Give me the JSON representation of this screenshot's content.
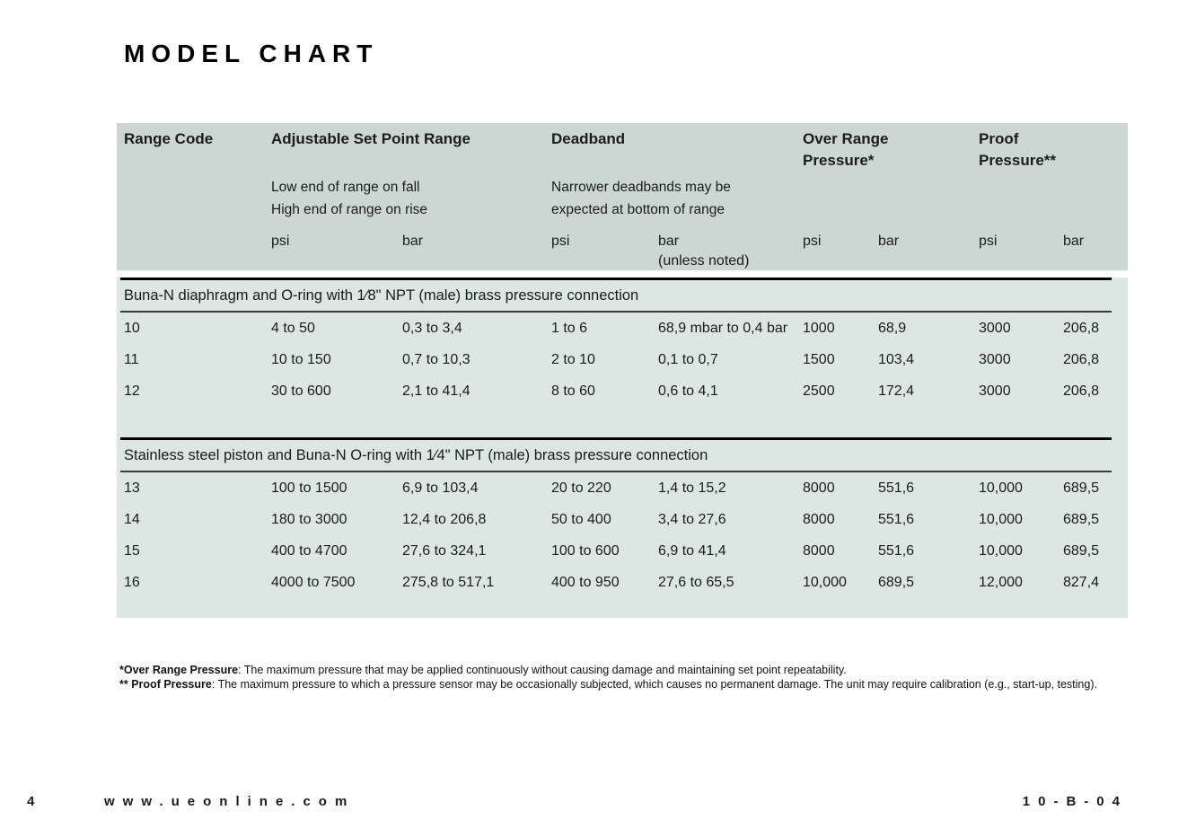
{
  "page": {
    "title": "MODEL CHART",
    "page_number": "4",
    "website": "www.ueonline.com",
    "doc_code": "10-B-04"
  },
  "colors": {
    "header_bg": "#ccd7d3",
    "body_bg": "#dce6e2",
    "rule_black": "#000000",
    "text": "#1b1b1b"
  },
  "table": {
    "header": {
      "range_code": "Range Code",
      "set_point": "Adjustable Set Point Range",
      "deadband": "Deadband",
      "over_range_line1": "Over Range",
      "over_range_line2": "Pressure*",
      "proof_line1": "Proof",
      "proof_line2": "Pressure**",
      "set_point_note_line1": "Low end of range on fall",
      "set_point_note_line2": "High end of range on rise",
      "deadband_note_line1": "Narrower deadbands may be",
      "deadband_note_line2": "expected at bottom of range",
      "units": {
        "set_psi": "psi",
        "set_bar": "bar",
        "db_psi": "psi",
        "db_bar": "bar",
        "db_bar_note": "(unless noted)",
        "or_psi": "psi",
        "or_bar": "bar",
        "pp_psi": "psi",
        "pp_bar": "bar"
      }
    },
    "sections": [
      {
        "title": "Buna-N diaphragm and O-ring with 1⁄8\" NPT (male) brass pressure connection",
        "rows": [
          {
            "range_code": "10",
            "set_psi": "4 to 50",
            "set_bar": "0,3 to 3,4",
            "db_psi": "1 to 6",
            "db_bar": "68,9 mbar to 0,4 bar",
            "or_psi": "1000",
            "or_bar": "68,9",
            "pp_psi": "3000",
            "pp_bar": "206,8"
          },
          {
            "range_code": "11",
            "set_psi": "10 to 150",
            "set_bar": "0,7 to 10,3",
            "db_psi": "2 to 10",
            "db_bar": "0,1 to 0,7",
            "or_psi": "1500",
            "or_bar": "103,4",
            "pp_psi": "3000",
            "pp_bar": "206,8"
          },
          {
            "range_code": "12",
            "set_psi": "30 to 600",
            "set_bar": "2,1 to 41,4",
            "db_psi": "8 to 60",
            "db_bar": "0,6 to 4,1",
            "or_psi": "2500",
            "or_bar": "172,4",
            "pp_psi": "3000",
            "pp_bar": "206,8"
          }
        ]
      },
      {
        "title": "Stainless steel piston and Buna-N O-ring with 1⁄4\" NPT (male) brass pressure connection",
        "rows": [
          {
            "range_code": "13",
            "set_psi": "100 to 1500",
            "set_bar": "6,9 to 103,4",
            "db_psi": "20 to 220",
            "db_bar": "1,4 to 15,2",
            "or_psi": "8000",
            "or_bar": "551,6",
            "pp_psi": "10,000",
            "pp_bar": "689,5"
          },
          {
            "range_code": "14",
            "set_psi": "180 to 3000",
            "set_bar": "12,4 to 206,8",
            "db_psi": "50 to 400",
            "db_bar": "3,4 to 27,6",
            "or_psi": "8000",
            "or_bar": "551,6",
            "pp_psi": "10,000",
            "pp_bar": "689,5"
          },
          {
            "range_code": "15",
            "set_psi": "400 to 4700",
            "set_bar": "27,6 to 324,1",
            "db_psi": "100 to 600",
            "db_bar": "6,9 to 41,4",
            "or_psi": "8000",
            "or_bar": "551,6",
            "pp_psi": "10,000",
            "pp_bar": "689,5"
          },
          {
            "range_code": "16",
            "set_psi": "4000 to 7500",
            "set_bar": "275,8 to 517,1",
            "db_psi": "400 to 950",
            "db_bar": "27,6 to 65,5",
            "or_psi": "10,000",
            "or_bar": "689,5",
            "pp_psi": "12,000",
            "pp_bar": "827,4"
          }
        ]
      }
    ]
  },
  "footnotes": [
    {
      "marker": "*",
      "term": "Over Range Pressure",
      "text": ": The maximum pressure that may be applied continuously without causing damage and maintaining set point repeatability."
    },
    {
      "marker": "**",
      "term": "Proof Pressure",
      "text": ": The maximum pressure to which a pressure sensor may be occasionally subjected, which causes no permanent damage. The unit may require calibration (e.g., start-up, testing)."
    }
  ]
}
